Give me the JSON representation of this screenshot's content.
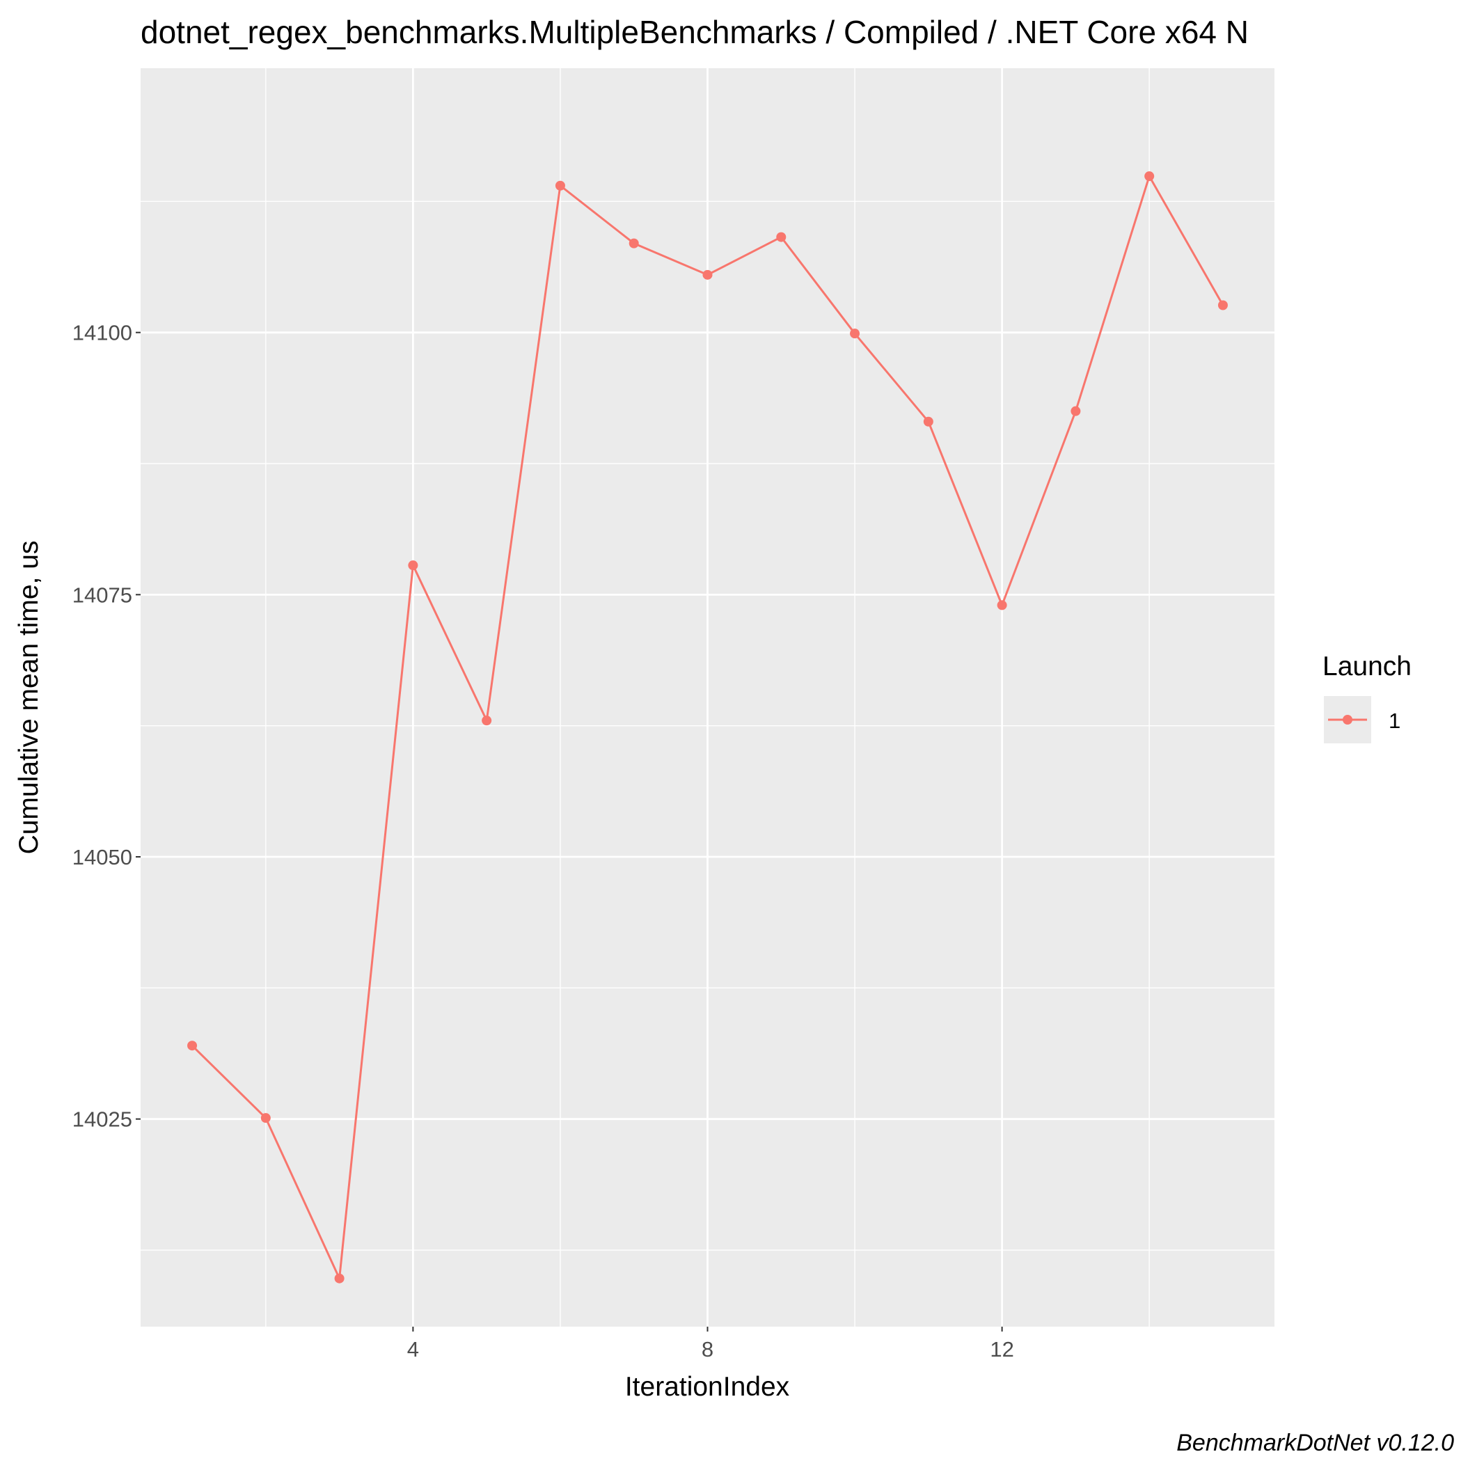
{
  "chart_data": {
    "type": "line",
    "title": "dotnet_regex_benchmarks.MultipleBenchmarks / Compiled / .NET Core x64 N",
    "xlabel": "IterationIndex",
    "ylabel": "Cumulative mean time, us",
    "caption": "BenchmarkDotNet v0.12.0",
    "x_ticks": [
      4,
      8,
      12
    ],
    "y_ticks": [
      14025,
      14050,
      14075,
      14100
    ],
    "x_tick_labels": [
      "4",
      "8",
      "12"
    ],
    "y_tick_labels": [
      "14025",
      "14050",
      "14075",
      "14100"
    ],
    "xlim": [
      0.3,
      15.7
    ],
    "ylim": [
      14005.2,
      14125.2
    ],
    "grid": true,
    "legend": {
      "title": "Launch",
      "position": "right"
    },
    "series": [
      {
        "name": "1",
        "color": "#F8766D",
        "x": [
          1,
          2,
          3,
          4,
          5,
          6,
          7,
          8,
          9,
          10,
          11,
          12,
          13,
          14,
          15
        ],
        "y": [
          14032.0,
          14025.1,
          14009.8,
          14077.8,
          14063.0,
          14114.0,
          14108.5,
          14105.5,
          14109.1,
          14099.9,
          14091.5,
          14074.0,
          14092.5,
          14114.9,
          14102.6
        ]
      }
    ]
  }
}
